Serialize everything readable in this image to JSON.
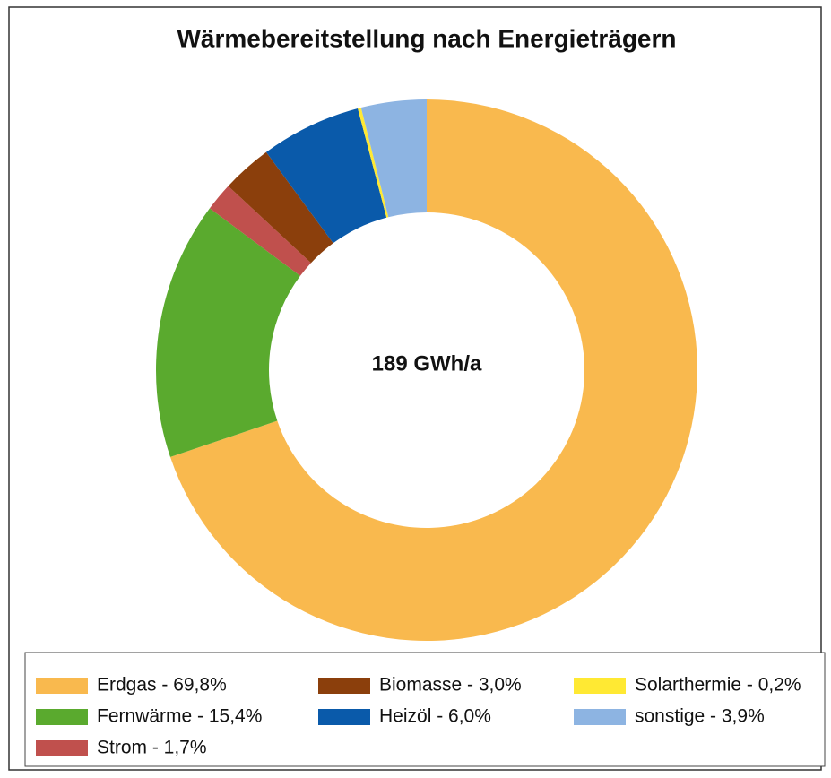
{
  "chart_data": {
    "type": "donut",
    "title": "Wärmebereitstellung nach Energieträgern",
    "center_label": "189 GWh/a",
    "categories": [
      "Erdgas - 69,8%",
      "Fernwärme - 15,4%",
      "Strom - 1,7%",
      "Biomasse - 3,0%",
      "Heizöl - 6,0%",
      "Solarthermie - 0,2%",
      "sonstige - 3,9%"
    ],
    "values": [
      69.8,
      15.4,
      1.7,
      3.0,
      6.0,
      0.2,
      3.9
    ],
    "colors": [
      "#f9b94e",
      "#5aaa2e",
      "#c0504d",
      "#8b3f0c",
      "#0a5aaa",
      "#ffe933",
      "#8db4e2"
    ],
    "legend": "bottom"
  }
}
